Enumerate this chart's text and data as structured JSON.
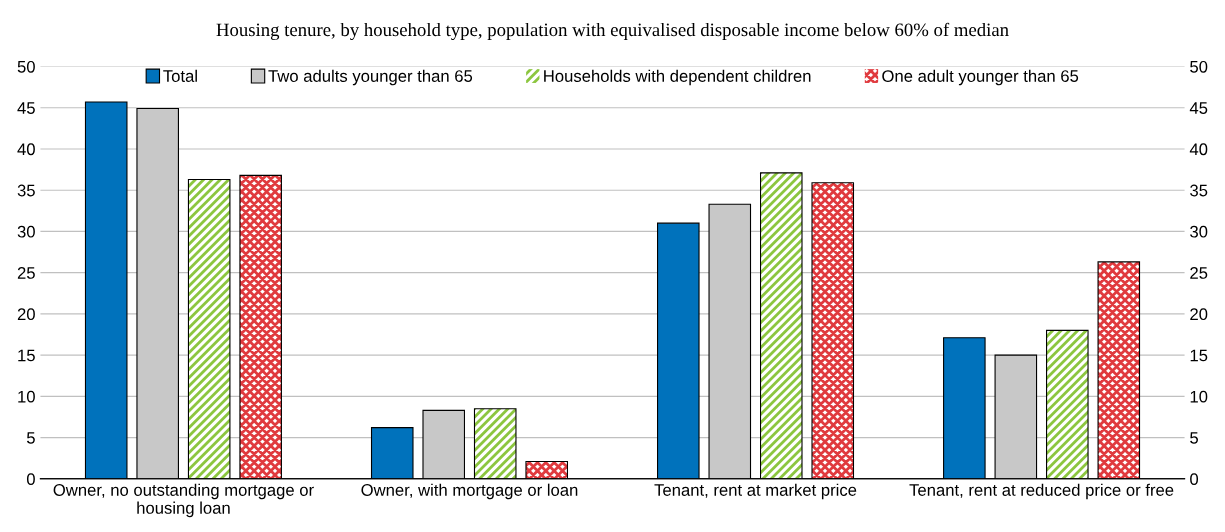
{
  "chart_data": {
    "type": "bar",
    "title": "Housing tenure, by household type, population with equivalised disposable income below 60% of median",
    "categories": [
      "Owner, no outstanding mortgage or\nhousing loan",
      "Owner, with mortgage or loan",
      "Tenant, rent at market price",
      "Tenant, rent at reduced price or free"
    ],
    "series": [
      {
        "name": "Total",
        "color": "#0072bc",
        "values": [
          45.7,
          6.2,
          31.0,
          17.1
        ]
      },
      {
        "name": "Two adults younger than 65",
        "color": "#c8c8c8",
        "values": [
          44.9,
          8.3,
          33.3,
          15.0
        ]
      },
      {
        "name": "Households with dependent children",
        "color": "#8cc63f",
        "values": [
          36.3,
          8.5,
          37.1,
          18.0
        ]
      },
      {
        "name": "One adult younger than 65",
        "color": "#e03a3e",
        "values": [
          36.8,
          2.1,
          35.9,
          26.3
        ]
      }
    ],
    "ylim": [
      0,
      50
    ],
    "yticks": [
      0,
      5,
      10,
      15,
      20,
      25,
      30,
      35,
      40,
      45,
      50
    ],
    "y2lim": [
      0,
      50
    ],
    "y2ticks": [
      0,
      5,
      10,
      15,
      20,
      25,
      30,
      35,
      40,
      45,
      50
    ],
    "grid": "y",
    "legend": "top"
  }
}
